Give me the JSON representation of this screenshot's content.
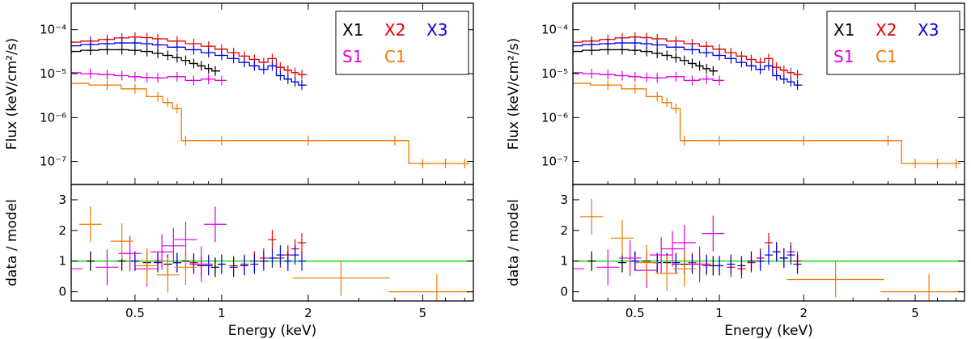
{
  "chart_data": [
    {
      "type": "line",
      "panel": "left",
      "xlabel": "Energy (keV)",
      "ylabel_top": "Flux (keV/cm²/s)",
      "ylabel_bottom": "data / model",
      "xlim": [
        0.3,
        7.5
      ],
      "ylim_top": [
        3e-08,
        0.0004
      ],
      "ylim_bottom": [
        -0.3,
        3.5
      ],
      "x_ticks": [
        {
          "v": 0.5,
          "label": "0.5"
        },
        {
          "v": 1,
          "label": "1"
        },
        {
          "v": 2,
          "label": "2"
        },
        {
          "v": 5,
          "label": "5"
        }
      ],
      "y_ticks_top": [
        {
          "v": 1e-07,
          "label": "10⁻⁷"
        },
        {
          "v": 1e-06,
          "label": "10⁻⁶"
        },
        {
          "v": 1e-05,
          "label": "10⁻⁵"
        },
        {
          "v": 0.0001,
          "label": "10⁻⁴"
        }
      ],
      "y_ticks_bottom": [
        {
          "v": 0,
          "label": "0"
        },
        {
          "v": 1,
          "label": "1"
        },
        {
          "v": 2,
          "label": "2"
        },
        {
          "v": 3,
          "label": "3"
        }
      ],
      "legend": [
        {
          "name": "X1",
          "color": "#000000"
        },
        {
          "name": "X2",
          "color": "#e00000"
        },
        {
          "name": "X3",
          "color": "#0000e0"
        },
        {
          "name": "S1",
          "color": "#e000e0"
        },
        {
          "name": "C1",
          "color": "#f07800"
        }
      ],
      "series": [
        {
          "name": "X1",
          "color": "#000000",
          "x": [
            0.3,
            0.35,
            0.4,
            0.45,
            0.5,
            0.55,
            0.6,
            0.65,
            0.7,
            0.75,
            0.8,
            0.85,
            0.9,
            0.95
          ],
          "y": [
            3.2e-05,
            3.4e-05,
            3.5e-05,
            3.5e-05,
            3.4e-05,
            3.2e-05,
            2.9e-05,
            2.6e-05,
            2.3e-05,
            2e-05,
            1.7e-05,
            1.5e-05,
            1.3e-05,
            1.15e-05
          ]
        },
        {
          "name": "X2",
          "color": "#e00000",
          "x": [
            0.3,
            0.35,
            0.4,
            0.45,
            0.5,
            0.55,
            0.6,
            0.7,
            0.8,
            0.9,
            1.0,
            1.1,
            1.2,
            1.3,
            1.4,
            1.5,
            1.6,
            1.7,
            1.8,
            1.9
          ],
          "y": [
            5.2e-05,
            5.5e-05,
            6e-05,
            6.5e-05,
            6.8e-05,
            6.6e-05,
            6.2e-05,
            5.5e-05,
            4.8e-05,
            4.2e-05,
            3.6e-05,
            3e-05,
            2.5e-05,
            2.1e-05,
            1.8e-05,
            2.2e-05,
            1.4e-05,
            1.2e-05,
            1.05e-05,
            9.5e-06
          ]
        },
        {
          "name": "X3",
          "color": "#0000e0",
          "x": [
            0.3,
            0.35,
            0.4,
            0.45,
            0.5,
            0.55,
            0.6,
            0.7,
            0.8,
            0.9,
            1.0,
            1.1,
            1.2,
            1.3,
            1.4,
            1.5,
            1.6,
            1.7,
            1.8,
            1.9
          ],
          "y": [
            4.3e-05,
            4.6e-05,
            4.8e-05,
            5e-05,
            5e-05,
            4.8e-05,
            4.5e-05,
            4e-05,
            3.5e-05,
            3e-05,
            2.6e-05,
            2.2e-05,
            1.8e-05,
            1.5e-05,
            1.25e-05,
            1.5e-05,
            9e-06,
            7.5e-06,
            6.5e-06,
            5.5e-06
          ]
        },
        {
          "name": "S1",
          "color": "#e000e0",
          "x": [
            0.3,
            0.35,
            0.4,
            0.45,
            0.5,
            0.55,
            0.6,
            0.7,
            0.8,
            0.9,
            1.0
          ],
          "y": [
            1.05e-05,
            1e-05,
            9.5e-06,
            9e-06,
            8.5e-06,
            8.2e-06,
            8e-06,
            8.5e-06,
            7e-06,
            7.5e-06,
            7e-06
          ]
        },
        {
          "name": "C1",
          "color": "#f07800",
          "x": [
            0.3,
            0.4,
            0.5,
            0.6,
            0.65,
            0.7,
            0.75,
            1.0,
            2.0,
            4.0,
            5.0,
            6.0,
            7.0
          ],
          "y": [
            6e-06,
            5.5e-06,
            4.5e-06,
            3e-06,
            2.2e-06,
            1.6e-06,
            3e-07,
            3e-07,
            3e-07,
            3e-07,
            9e-08,
            9e-08,
            9e-08
          ]
        }
      ],
      "ratio_series": [
        {
          "name": "X1",
          "color": "#000000",
          "x": [
            0.35,
            0.45,
            0.55,
            0.65,
            0.75,
            0.85,
            0.95
          ],
          "y": [
            1.0,
            1.0,
            0.95,
            0.9,
            1.0,
            0.85,
            0.8
          ]
        },
        {
          "name": "X2",
          "color": "#e00000",
          "x": [
            0.5,
            0.6,
            0.7,
            0.8,
            0.9,
            1.0,
            1.1,
            1.2,
            1.3,
            1.4,
            1.5,
            1.6,
            1.7,
            1.8,
            1.9
          ],
          "y": [
            1.0,
            1.0,
            0.95,
            0.95,
            0.9,
            0.9,
            0.85,
            0.9,
            1.0,
            1.1,
            1.7,
            1.1,
            1.2,
            1.4,
            1.6
          ]
        },
        {
          "name": "X3",
          "color": "#0000e0",
          "x": [
            0.5,
            0.6,
            0.7,
            0.8,
            0.9,
            1.0,
            1.1,
            1.2,
            1.3,
            1.4,
            1.5,
            1.6,
            1.7,
            1.8,
            1.9
          ],
          "y": [
            1.0,
            0.95,
            0.95,
            0.9,
            0.85,
            0.9,
            0.8,
            0.85,
            0.9,
            1.0,
            1.1,
            1.2,
            1.0,
            1.2,
            1.0
          ]
        },
        {
          "name": "S1",
          "color": "#e000e0",
          "x": [
            0.3,
            0.4,
            0.48,
            0.55,
            0.62,
            0.68,
            0.75,
            0.85,
            0.95
          ],
          "y": [
            0.75,
            0.8,
            1.25,
            0.75,
            1.3,
            1.5,
            1.7,
            0.9,
            2.2
          ]
        },
        {
          "name": "C1",
          "color": "#f07800",
          "x": [
            0.35,
            0.45,
            0.55,
            0.65,
            0.75,
            2.6,
            5.6
          ],
          "y": [
            2.2,
            1.65,
            0.85,
            0.55,
            0.8,
            0.45,
            0.0
          ]
        }
      ]
    },
    {
      "type": "line",
      "panel": "right",
      "xlabel": "Energy (keV)",
      "ylabel_top": "Flux (keV/cm²/s)",
      "ylabel_bottom": "data / model",
      "xlim": [
        0.3,
        7.5
      ],
      "ylim_top": [
        3e-08,
        0.0004
      ],
      "ylim_bottom": [
        -0.3,
        3.5
      ],
      "x_ticks": [
        {
          "v": 0.5,
          "label": "0.5"
        },
        {
          "v": 1,
          "label": "1"
        },
        {
          "v": 2,
          "label": "2"
        },
        {
          "v": 5,
          "label": "5"
        }
      ],
      "y_ticks_top": [
        {
          "v": 1e-07,
          "label": "10⁻⁷"
        },
        {
          "v": 1e-06,
          "label": "10⁻⁶"
        },
        {
          "v": 1e-05,
          "label": "10⁻⁵"
        },
        {
          "v": 0.0001,
          "label": "10⁻⁴"
        }
      ],
      "y_ticks_bottom": [
        {
          "v": 0,
          "label": "0"
        },
        {
          "v": 1,
          "label": "1"
        },
        {
          "v": 2,
          "label": "2"
        },
        {
          "v": 3,
          "label": "3"
        }
      ],
      "legend": [
        {
          "name": "X1",
          "color": "#000000"
        },
        {
          "name": "X2",
          "color": "#e00000"
        },
        {
          "name": "X3",
          "color": "#0000e0"
        },
        {
          "name": "S1",
          "color": "#e000e0"
        },
        {
          "name": "C1",
          "color": "#f07800"
        }
      ],
      "series": [
        {
          "name": "X1",
          "color": "#000000",
          "x": [
            0.3,
            0.35,
            0.4,
            0.45,
            0.5,
            0.55,
            0.6,
            0.65,
            0.7,
            0.75,
            0.8,
            0.85,
            0.9,
            0.95
          ],
          "y": [
            3.2e-05,
            3.4e-05,
            3.5e-05,
            3.5e-05,
            3.4e-05,
            3.2e-05,
            2.9e-05,
            2.6e-05,
            2.3e-05,
            2e-05,
            1.7e-05,
            1.5e-05,
            1.3e-05,
            1.15e-05
          ]
        },
        {
          "name": "X2",
          "color": "#e00000",
          "x": [
            0.3,
            0.35,
            0.4,
            0.45,
            0.5,
            0.55,
            0.6,
            0.7,
            0.8,
            0.9,
            1.0,
            1.1,
            1.2,
            1.3,
            1.4,
            1.5,
            1.6,
            1.7,
            1.8,
            1.9
          ],
          "y": [
            5.2e-05,
            5.5e-05,
            6e-05,
            6.5e-05,
            6.8e-05,
            6.6e-05,
            6.2e-05,
            5.5e-05,
            4.8e-05,
            4.2e-05,
            3.6e-05,
            3e-05,
            2.5e-05,
            2.1e-05,
            1.8e-05,
            2.2e-05,
            1.4e-05,
            1.2e-05,
            1.05e-05,
            9.5e-06
          ]
        },
        {
          "name": "X3",
          "color": "#0000e0",
          "x": [
            0.3,
            0.35,
            0.4,
            0.45,
            0.5,
            0.55,
            0.6,
            0.7,
            0.8,
            0.9,
            1.0,
            1.1,
            1.2,
            1.3,
            1.4,
            1.5,
            1.6,
            1.7,
            1.8,
            1.9
          ],
          "y": [
            4.3e-05,
            4.6e-05,
            4.8e-05,
            5e-05,
            5e-05,
            4.8e-05,
            4.5e-05,
            4e-05,
            3.5e-05,
            3e-05,
            2.6e-05,
            2.2e-05,
            1.8e-05,
            1.5e-05,
            1.25e-05,
            1.5e-05,
            9e-06,
            7.5e-06,
            6.5e-06,
            5.5e-06
          ]
        },
        {
          "name": "S1",
          "color": "#e000e0",
          "x": [
            0.3,
            0.35,
            0.4,
            0.45,
            0.5,
            0.55,
            0.6,
            0.7,
            0.8,
            0.9,
            1.0
          ],
          "y": [
            1.05e-05,
            1e-05,
            9.5e-06,
            9e-06,
            8.5e-06,
            8.2e-06,
            8e-06,
            8.5e-06,
            7e-06,
            7.5e-06,
            7e-06
          ]
        },
        {
          "name": "C1",
          "color": "#f07800",
          "x": [
            0.3,
            0.4,
            0.5,
            0.6,
            0.65,
            0.7,
            0.75,
            1.0,
            2.0,
            4.0,
            5.0,
            6.0,
            7.0
          ],
          "y": [
            6e-06,
            5.5e-06,
            4.5e-06,
            3e-06,
            2.2e-06,
            1.6e-06,
            3e-07,
            3e-07,
            3e-07,
            3e-07,
            9e-08,
            9e-08,
            9e-08
          ]
        }
      ],
      "ratio_series": [
        {
          "name": "X1",
          "color": "#000000",
          "x": [
            0.35,
            0.45,
            0.55,
            0.65,
            0.75,
            0.85,
            0.95
          ],
          "y": [
            1.0,
            0.95,
            1.0,
            0.95,
            0.9,
            0.9,
            0.85
          ]
        },
        {
          "name": "X2",
          "color": "#e00000",
          "x": [
            0.5,
            0.6,
            0.7,
            0.8,
            0.9,
            1.0,
            1.1,
            1.2,
            1.3,
            1.4,
            1.5,
            1.6,
            1.7,
            1.8,
            1.9
          ],
          "y": [
            1.0,
            0.95,
            0.9,
            0.95,
            0.85,
            0.85,
            0.8,
            0.75,
            0.95,
            1.1,
            1.6,
            1.3,
            1.1,
            1.3,
            1.0
          ]
        },
        {
          "name": "X3",
          "color": "#0000e0",
          "x": [
            0.5,
            0.6,
            0.7,
            0.8,
            0.9,
            1.0,
            1.1,
            1.2,
            1.3,
            1.4,
            1.5,
            1.6,
            1.7,
            1.8,
            1.9
          ],
          "y": [
            1.0,
            0.95,
            0.95,
            0.9,
            0.9,
            0.85,
            0.9,
            0.85,
            1.0,
            1.0,
            1.2,
            1.3,
            1.1,
            1.2,
            0.9
          ]
        },
        {
          "name": "S1",
          "color": "#e000e0",
          "x": [
            0.3,
            0.4,
            0.48,
            0.55,
            0.62,
            0.68,
            0.75,
            0.85,
            0.95
          ],
          "y": [
            0.75,
            0.8,
            1.1,
            0.7,
            1.2,
            1.4,
            1.6,
            0.9,
            1.9
          ]
        },
        {
          "name": "C1",
          "color": "#f07800",
          "x": [
            0.35,
            0.45,
            0.55,
            0.65,
            0.75,
            2.6,
            5.6
          ],
          "y": [
            2.45,
            1.75,
            0.95,
            0.6,
            0.75,
            0.4,
            0.0
          ]
        }
      ]
    }
  ]
}
